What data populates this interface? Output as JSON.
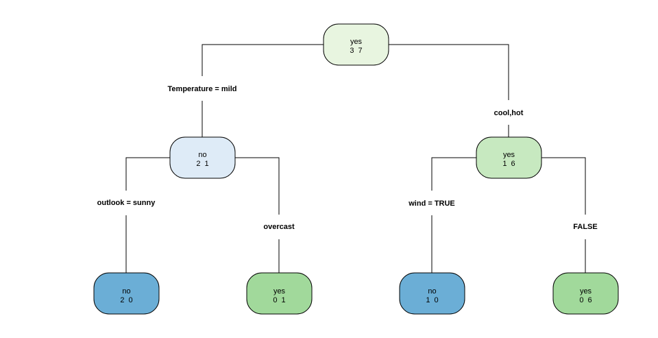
{
  "nodes": {
    "root": {
      "class": "yes",
      "counts": "3  7",
      "color": "#e8f5e0"
    },
    "left": {
      "class": "no",
      "counts": "2  1",
      "color": "#deebf7"
    },
    "right": {
      "class": "yes",
      "counts": "1  6",
      "color": "#c7e9c0"
    },
    "left_left": {
      "class": "no",
      "counts": "2  0",
      "color": "#6baed6"
    },
    "left_right": {
      "class": "yes",
      "counts": "0  1",
      "color": "#a1d99b"
    },
    "right_left": {
      "class": "no",
      "counts": "1  0",
      "color": "#6baed6"
    },
    "right_right": {
      "class": "yes",
      "counts": "0  6",
      "color": "#a1d99b"
    }
  },
  "splits": {
    "root_left": "Temperature = mild",
    "root_right": "cool,hot",
    "left_left": "outlook = sunny",
    "left_right": "overcast",
    "right_left": "wind = TRUE",
    "right_right": "FALSE"
  }
}
